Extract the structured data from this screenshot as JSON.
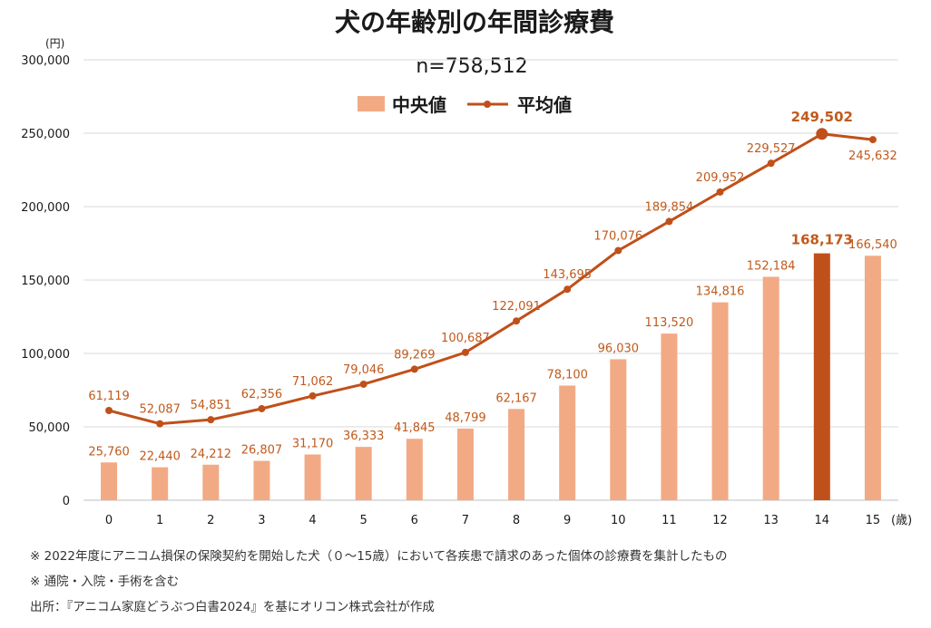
{
  "chart_data": {
    "type": "bar",
    "title": "犬の年齢別の年間診療費",
    "sample_size": "n=758,512",
    "y_unit": "(円)",
    "x_unit": "(歳)",
    "ylim": [
      0,
      300000
    ],
    "yticks": [
      0,
      50000,
      100000,
      150000,
      200000,
      250000,
      300000
    ],
    "ytick_labels": [
      "0",
      "50,000",
      "100,000",
      "150,000",
      "200,000",
      "250,000",
      "300,000"
    ],
    "categories": [
      "0",
      "1",
      "2",
      "3",
      "4",
      "5",
      "6",
      "7",
      "8",
      "9",
      "10",
      "11",
      "12",
      "13",
      "14",
      "15"
    ],
    "highlight_index": 14,
    "grid": true,
    "legend_position": "top-center",
    "series": [
      {
        "name": "中央値",
        "kind": "bar",
        "color": "#f2aa84",
        "highlight_color": "#c0501a",
        "values": [
          25760,
          22440,
          24212,
          26807,
          31170,
          36333,
          41845,
          48799,
          62167,
          78100,
          96030,
          113520,
          134816,
          152184,
          168173,
          166540
        ],
        "labels": [
          "25,760",
          "22,440",
          "24,212",
          "26,807",
          "31,170",
          "36,333",
          "41,845",
          "48,799",
          "62,167",
          "78,100",
          "96,030",
          "113,520",
          "134,816",
          "152,184",
          "168,173",
          "166,540"
        ]
      },
      {
        "name": "平均値",
        "kind": "line",
        "color": "#c0501a",
        "values": [
          61119,
          52087,
          54851,
          62356,
          71062,
          79046,
          89269,
          100687,
          122091,
          143695,
          170076,
          189854,
          209952,
          229527,
          249502,
          245632
        ],
        "labels": [
          "61,119",
          "52,087",
          "54,851",
          "62,356",
          "71,062",
          "79,046",
          "89,269",
          "100,687",
          "122,091",
          "143,695",
          "170,076",
          "189,854",
          "209,952",
          "229,527",
          "249,502",
          "245,632"
        ]
      }
    ]
  },
  "notes": {
    "note1": "※ 2022年度にアニコム損保の保険契約を開始した犬（０～15歳）において各疾患で請求のあった個体の診療費を集計したもの",
    "note2": "※ 通院・入院・手術を含む",
    "source": "出所：『アニコム家庭どうぶつ白書2024』を基にオリコン株式会社が作成"
  }
}
